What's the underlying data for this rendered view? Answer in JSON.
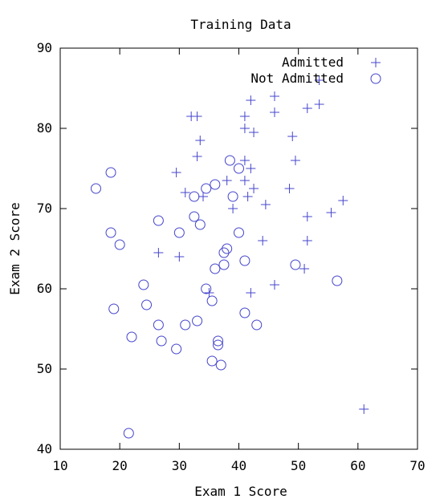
{
  "chart_data": {
    "type": "scatter",
    "title": "Training Data",
    "xlabel": "Exam 1 Score",
    "ylabel": "Exam 2 Score",
    "xlim": [
      10,
      70
    ],
    "ylim": [
      40,
      90
    ],
    "xticks": [
      10,
      20,
      30,
      40,
      50,
      60,
      70
    ],
    "yticks": [
      40,
      50,
      60,
      70,
      80,
      90
    ],
    "grid": false,
    "legend_position": "top-right",
    "marker_color": "#4444cc",
    "series": [
      {
        "name": "Admitted",
        "marker": "plus",
        "points": [
          [
            32,
            81.5
          ],
          [
            33,
            81.5
          ],
          [
            42,
            83.5
          ],
          [
            46,
            84
          ],
          [
            41,
            81.5
          ],
          [
            46,
            82
          ],
          [
            51.5,
            82.5
          ],
          [
            53.5,
            83
          ],
          [
            53.5,
            86
          ],
          [
            41,
            80
          ],
          [
            42.5,
            79.5
          ],
          [
            49,
            79
          ],
          [
            33.5,
            78.5
          ],
          [
            33,
            76.5
          ],
          [
            41,
            76
          ],
          [
            49.5,
            76
          ],
          [
            29.5,
            74.5
          ],
          [
            42,
            75
          ],
          [
            41,
            73.5
          ],
          [
            38,
            73.5
          ],
          [
            31,
            72
          ],
          [
            34,
            71.5
          ],
          [
            42.5,
            72.5
          ],
          [
            41.5,
            71.5
          ],
          [
            48.5,
            72.5
          ],
          [
            44.5,
            70.5
          ],
          [
            39,
            70
          ],
          [
            57.5,
            71
          ],
          [
            51.5,
            69
          ],
          [
            55.5,
            69.5
          ],
          [
            44,
            66
          ],
          [
            51.5,
            66
          ],
          [
            26.5,
            64.5
          ],
          [
            30,
            64
          ],
          [
            51,
            62.5
          ],
          [
            46,
            60.5
          ],
          [
            46,
            60.5
          ],
          [
            42,
            59.5
          ],
          [
            35,
            59.5
          ],
          [
            61,
            45
          ]
        ]
      },
      {
        "name": "Not Admitted",
        "marker": "circle",
        "points": [
          [
            16,
            72.5
          ],
          [
            18.5,
            74.5
          ],
          [
            18.5,
            67
          ],
          [
            20,
            65.5
          ],
          [
            26.5,
            68.5
          ],
          [
            30,
            67
          ],
          [
            33.5,
            68
          ],
          [
            32.5,
            71.5
          ],
          [
            32.5,
            69
          ],
          [
            34.5,
            72.5
          ],
          [
            36,
            73
          ],
          [
            38.5,
            76
          ],
          [
            40,
            75
          ],
          [
            39,
            71.5
          ],
          [
            40,
            67
          ],
          [
            38,
            65
          ],
          [
            37.5,
            64.5
          ],
          [
            36,
            62.5
          ],
          [
            37.5,
            63
          ],
          [
            41,
            63.5
          ],
          [
            49.5,
            63
          ],
          [
            56.5,
            61
          ],
          [
            34.5,
            60
          ],
          [
            35.5,
            58.5
          ],
          [
            24,
            60.5
          ],
          [
            24.5,
            58
          ],
          [
            19,
            57.5
          ],
          [
            22,
            54
          ],
          [
            26.5,
            55.5
          ],
          [
            27,
            53.5
          ],
          [
            29.5,
            52.5
          ],
          [
            31,
            55.5
          ],
          [
            33,
            56
          ],
          [
            36.5,
            53.5
          ],
          [
            36.5,
            53
          ],
          [
            35.5,
            51
          ],
          [
            37,
            50.5
          ],
          [
            41,
            57
          ],
          [
            43,
            55.5
          ],
          [
            21.5,
            42
          ]
        ]
      }
    ]
  }
}
